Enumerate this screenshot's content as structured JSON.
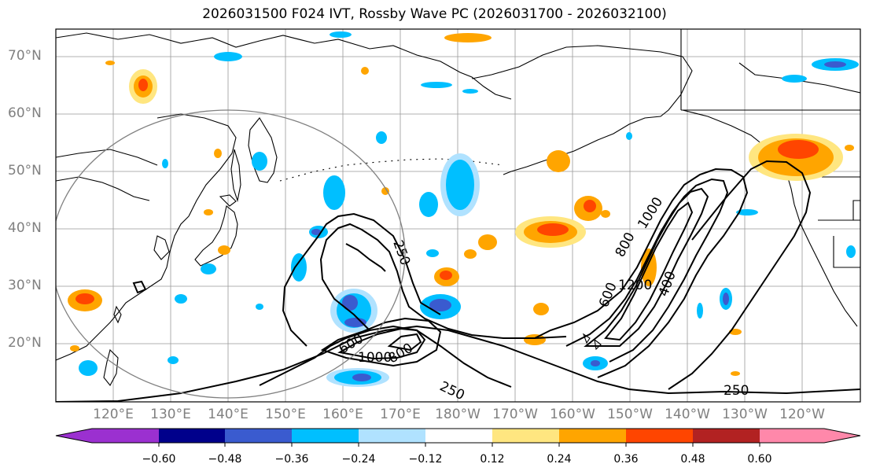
{
  "title": "2026031500 F024 IVT, Rossby Wave PC (2026031700 - 2026032100)",
  "lat_labels": [
    "70°N",
    "60°N",
    "50°N",
    "40°N",
    "30°N",
    "20°N"
  ],
  "lon_labels": [
    "120°E",
    "130°E",
    "140°E",
    "150°E",
    "160°E",
    "170°E",
    "180°W",
    "170°W",
    "160°W",
    "150°W",
    "140°W",
    "130°W",
    "120°W"
  ],
  "contour_labels": [
    "250",
    "600",
    "1000",
    "800",
    "1000",
    "800",
    "1200",
    "600",
    "400",
    "250"
  ],
  "colorbar": {
    "ticks": [
      "−0.60",
      "−0.48",
      "−0.36",
      "−0.24",
      "−0.12",
      "0.12",
      "0.24",
      "0.36",
      "0.48",
      "0.60"
    ],
    "colors": [
      "#9b30d0",
      "#00008b",
      "#3a5bcf",
      "#00bfff",
      "#b0e2ff",
      "#ffffff",
      "#ffe680",
      "#ffa500",
      "#ff4500",
      "#b22222",
      "#ff88aa"
    ]
  }
}
